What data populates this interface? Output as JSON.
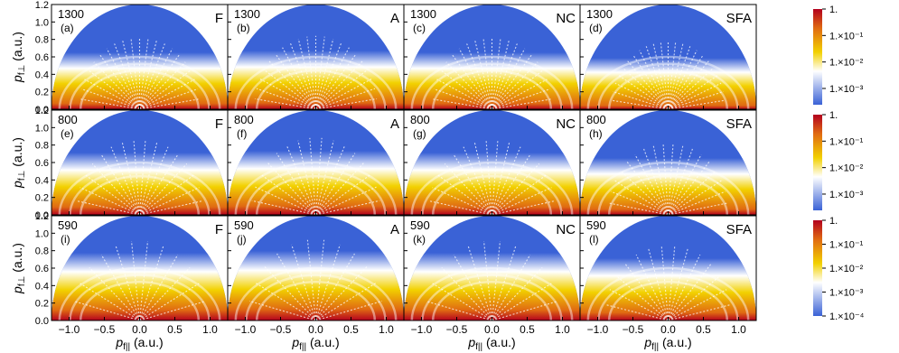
{
  "chart_data": {
    "type": "heatmap",
    "layout": {
      "rows": 3,
      "cols": 4
    },
    "x_axis": {
      "label_main": "p",
      "label_sub": "f||",
      "label_unit": "(a.u.)",
      "range": [
        -1.25,
        1.25
      ],
      "ticks": [
        -1.0,
        -0.5,
        0.0,
        0.5,
        1.0
      ],
      "tick_labels": [
        "−1.0",
        "−0.5",
        "0.0",
        "0.5",
        "1.0"
      ]
    },
    "y_axis": {
      "label_main": "p",
      "label_sub": "f⊥",
      "label_unit": "(a.u.)",
      "range": [
        0.0,
        1.2
      ],
      "ticks": [
        0.0,
        0.2,
        0.4,
        0.6,
        0.8,
        1.0,
        1.2
      ],
      "tick_labels": [
        "0.0",
        "0.2",
        "0.4",
        "0.6",
        "0.8",
        "1.0",
        "1.2"
      ]
    },
    "colorbar": {
      "scale": "log",
      "colors": [
        "#3a62d6",
        "#ffffff",
        "#f2d100",
        "#e06a12",
        "#b3001e"
      ],
      "rows": [
        {
          "labels": [
            "1.",
            "1.×10⁻¹",
            "1.×10⁻²",
            "1.×10⁻³"
          ]
        },
        {
          "labels": [
            "1.",
            "1.×10⁻¹",
            "1.×10⁻²",
            "1.×10⁻³"
          ]
        },
        {
          "labels": [
            "1.",
            "1.×10⁻¹",
            "1.×10⁻²",
            "1.×10⁻³",
            "1.×10⁻⁴"
          ]
        }
      ]
    },
    "panels": [
      {
        "id": "(a)",
        "wavelength": "1300",
        "method": "F",
        "row": 0,
        "col": 0,
        "intensity": 0.55,
        "fringes": 22
      },
      {
        "id": "(b)",
        "wavelength": "1300",
        "method": "A",
        "row": 0,
        "col": 1,
        "intensity": 0.6,
        "fringes": 22
      },
      {
        "id": "(c)",
        "wavelength": "1300",
        "method": "NC",
        "row": 0,
        "col": 2,
        "intensity": 0.55,
        "fringes": 22
      },
      {
        "id": "(d)",
        "wavelength": "1300",
        "method": "SFA",
        "row": 0,
        "col": 3,
        "intensity": 0.4,
        "fringes": 24
      },
      {
        "id": "(e)",
        "wavelength": "800",
        "method": "F",
        "row": 1,
        "col": 0,
        "intensity": 0.7,
        "fringes": 17
      },
      {
        "id": "(f)",
        "wavelength": "800",
        "method": "A",
        "row": 1,
        "col": 1,
        "intensity": 0.75,
        "fringes": 17
      },
      {
        "id": "(g)",
        "wavelength": "800",
        "method": "NC",
        "row": 1,
        "col": 2,
        "intensity": 0.7,
        "fringes": 17
      },
      {
        "id": "(h)",
        "wavelength": "800",
        "method": "SFA",
        "row": 1,
        "col": 3,
        "intensity": 0.55,
        "fringes": 19
      },
      {
        "id": "(i)",
        "wavelength": "590",
        "method": "F",
        "row": 2,
        "col": 0,
        "intensity": 0.85,
        "fringes": 13
      },
      {
        "id": "(j)",
        "wavelength": "590",
        "method": "A",
        "row": 2,
        "col": 1,
        "intensity": 0.9,
        "fringes": 13
      },
      {
        "id": "(k)",
        "wavelength": "590",
        "method": "NC",
        "row": 2,
        "col": 2,
        "intensity": 0.85,
        "fringes": 13
      },
      {
        "id": "(l)",
        "wavelength": "590",
        "method": "SFA",
        "row": 2,
        "col": 3,
        "intensity": 0.7,
        "fringes": 15
      }
    ]
  }
}
